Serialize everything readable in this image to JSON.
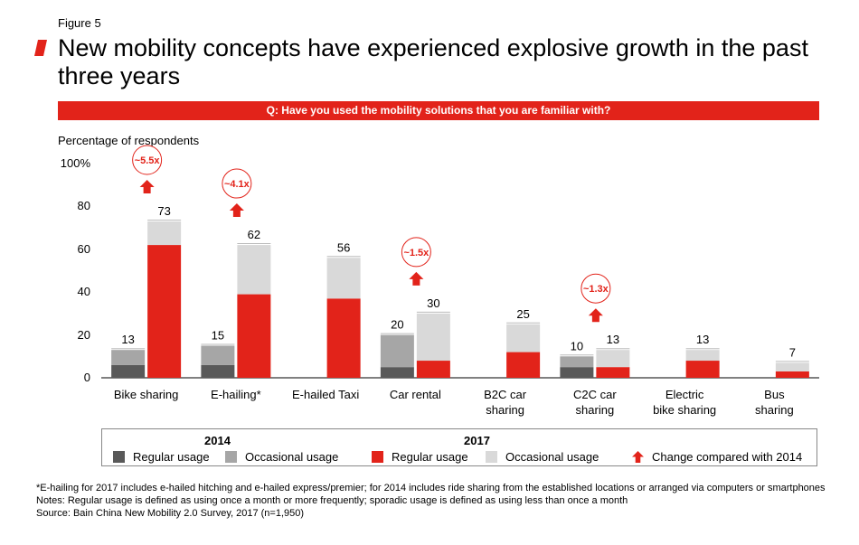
{
  "figure_label": "Figure 5",
  "title": "New mobility concepts have experienced explosive growth in the past three years",
  "question": "Q: Have you used the mobility solutions that you are familiar with?",
  "colors": {
    "red": "#e2231a",
    "dark_grey": "#595959",
    "mid_grey": "#a6a6a6",
    "light_grey": "#d9d9d9"
  },
  "chart_data": {
    "type": "bar",
    "subtype": "stacked-grouped",
    "ylabel": "Percentage of respondents",
    "ylim": [
      0,
      100
    ],
    "yticks": [
      "100%",
      "80",
      "60",
      "40",
      "20",
      "0"
    ],
    "categories": [
      "Bike sharing",
      "E-hailing*",
      "E-hailed Taxi",
      "Car rental",
      "B2C car sharing",
      "C2C car sharing",
      "Electric bike sharing",
      "Bus sharing"
    ],
    "category_lines": [
      [
        "Bike sharing"
      ],
      [
        "E-hailing*"
      ],
      [
        "E-hailed Taxi"
      ],
      [
        "Car rental"
      ],
      [
        "B2C car",
        "sharing"
      ],
      [
        "C2C car",
        "sharing"
      ],
      [
        "Electric",
        "bike sharing"
      ],
      [
        "Bus",
        "sharing"
      ]
    ],
    "series_2014": {
      "regular": [
        6,
        6,
        null,
        5,
        null,
        5,
        null,
        null
      ],
      "occasional": [
        7,
        9,
        null,
        15,
        null,
        5,
        null,
        null
      ],
      "totals": [
        "13",
        "15",
        null,
        "20",
        null,
        "10",
        null,
        null
      ]
    },
    "series_2017": {
      "regular": [
        62,
        39,
        37,
        8,
        12,
        5,
        8,
        3
      ],
      "occasional": [
        11,
        23,
        19,
        22,
        13,
        8,
        5,
        4
      ],
      "totals": [
        "73",
        "62",
        "56",
        "30",
        "25",
        "13",
        "13",
        "7"
      ]
    },
    "growth": [
      "~5.5x",
      "~4.1x",
      null,
      "~1.5x",
      null,
      "~1.3x",
      null,
      null
    ],
    "legend": {
      "year_2014": "2014",
      "year_2017": "2017",
      "items_2014": [
        "Regular usage",
        "Occasional usage"
      ],
      "items_2017": [
        "Regular usage",
        "Occasional usage"
      ],
      "arrow": "Change compared with 2014"
    }
  },
  "notes": [
    "*E-hailing for 2017 includes e-hailed hitching and e-hailed express/premier; for 2014 includes ride sharing from the established locations or arranged via computers or smartphones",
    "Notes: Regular usage is defined as using once a month or more frequently; sporadic usage is defined as using less than once a month",
    "Source: Bain China New Mobility 2.0 Survey, 2017 (n=1,950)"
  ]
}
